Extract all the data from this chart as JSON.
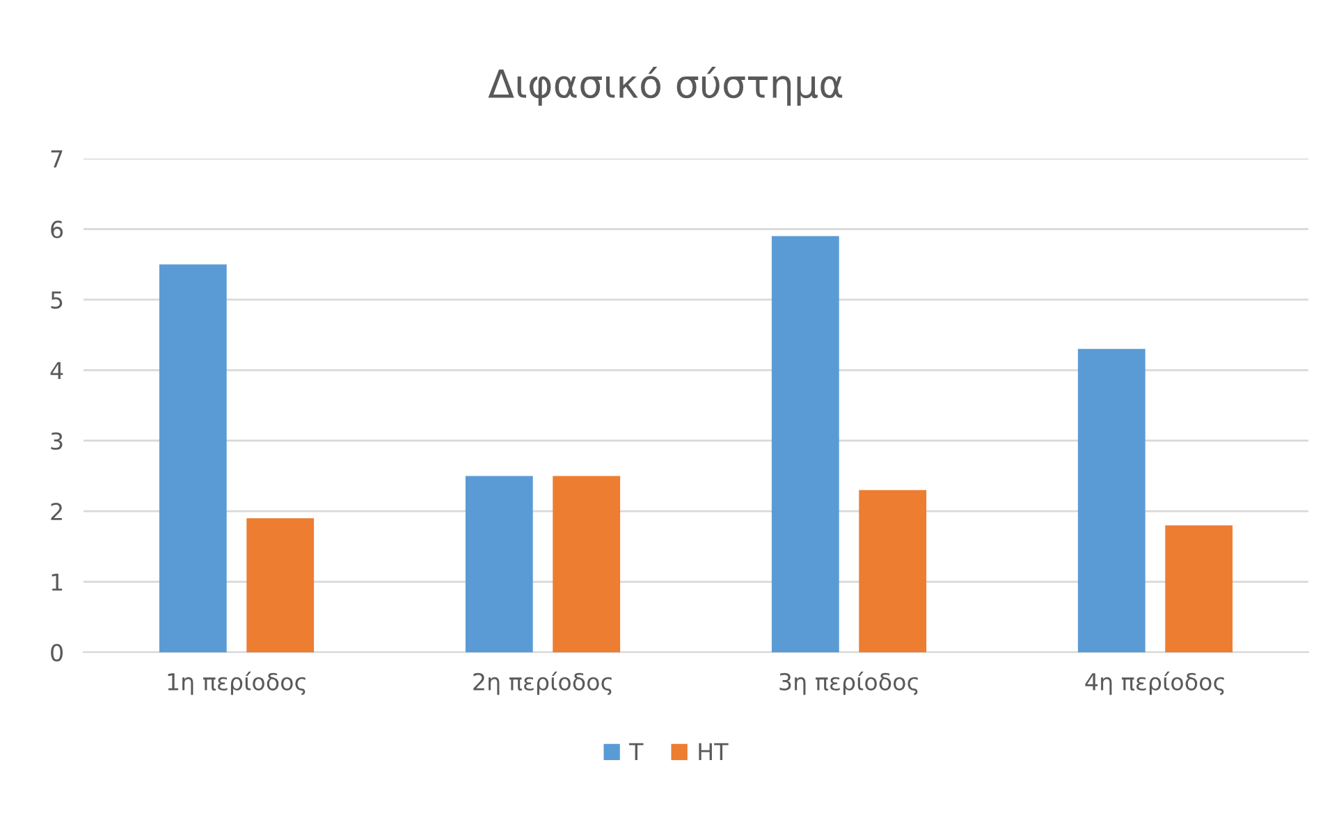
{
  "chart_data": {
    "type": "bar",
    "title": "Διφασικό σύστημα",
    "categories": [
      "1η περίοδος",
      "2η περίοδος",
      "3η περίοδος",
      "4η περίοδος"
    ],
    "series": [
      {
        "name": "T",
        "color": "#5b9bd5",
        "values": [
          5.5,
          2.5,
          5.9,
          4.3
        ]
      },
      {
        "name": "HT",
        "color": "#ed7d31",
        "values": [
          1.9,
          2.5,
          2.3,
          1.8
        ]
      }
    ],
    "ylim": [
      0,
      7
    ],
    "yticks": [
      0,
      1,
      2,
      3,
      4,
      5,
      6,
      7
    ],
    "grid": "y",
    "legend": "bottom"
  }
}
